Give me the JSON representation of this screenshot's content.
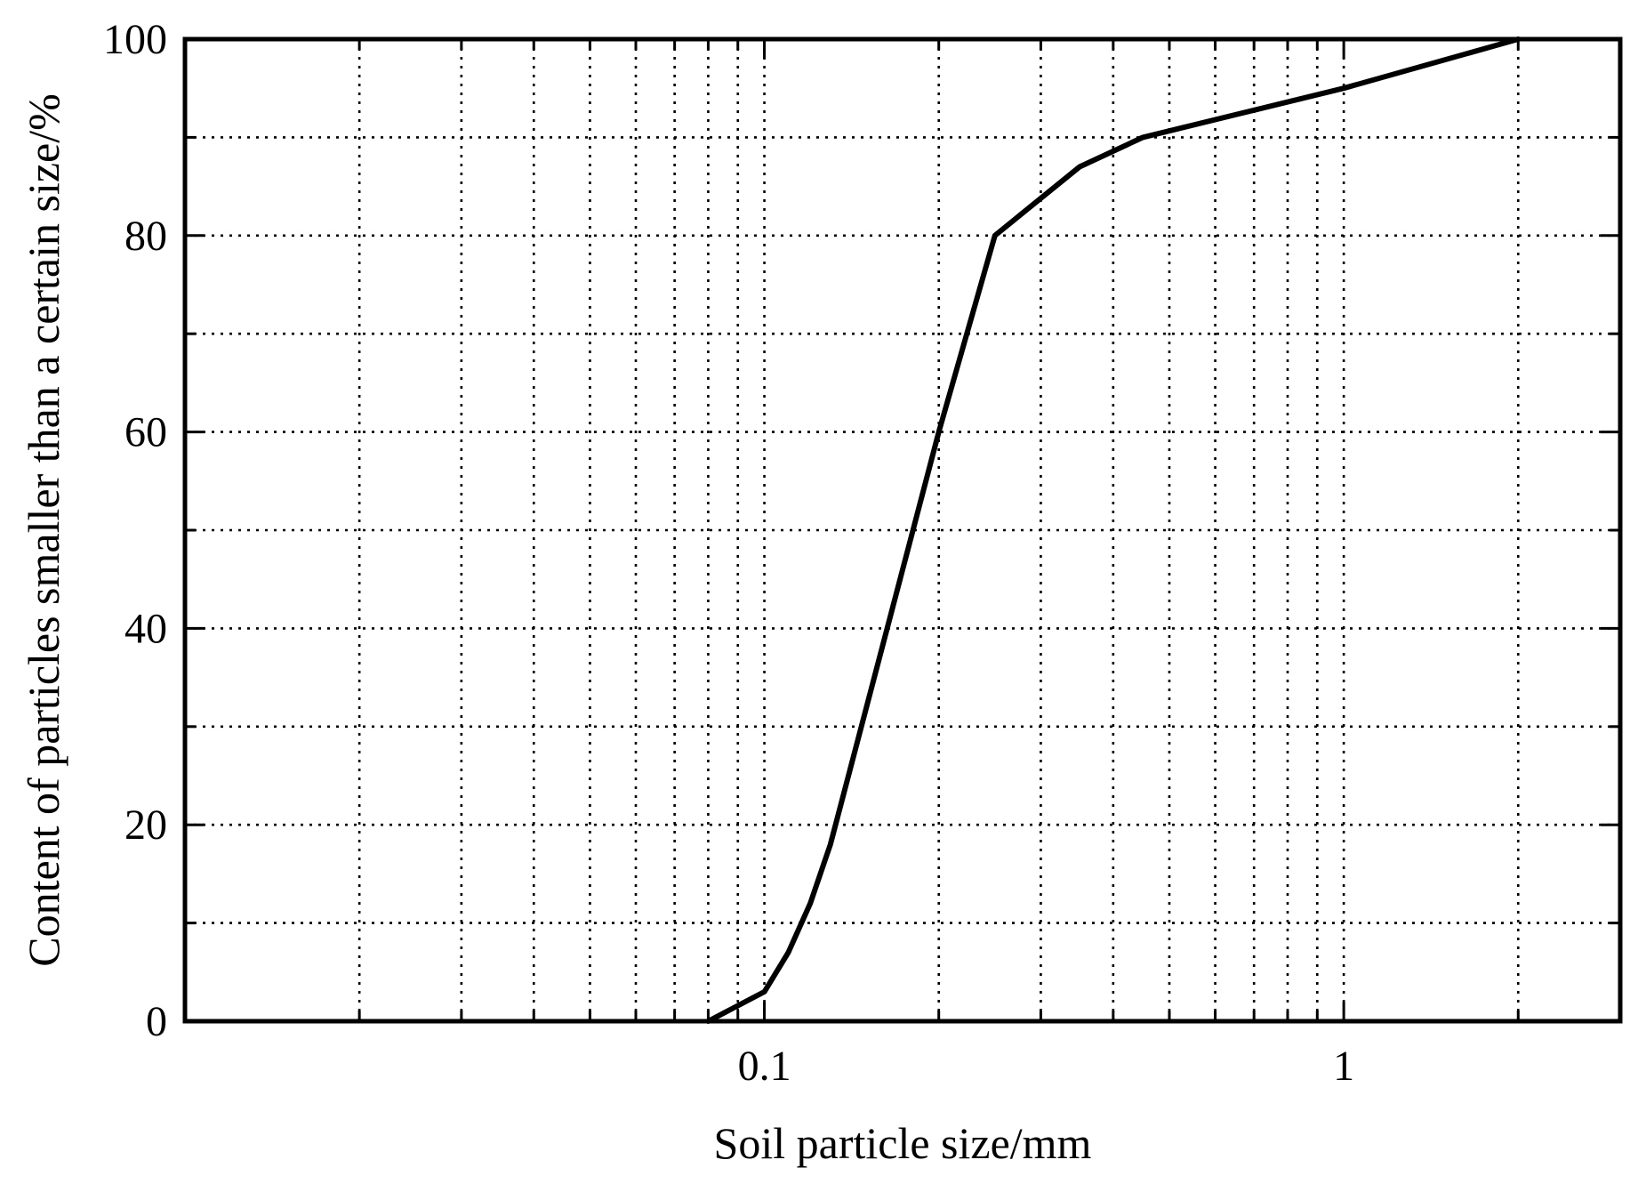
{
  "chart_data": {
    "type": "line",
    "title": "",
    "xlabel": "Soil particle size/mm",
    "ylabel": "Content of particles smaller than a certain size/%",
    "x_scale": "log",
    "xlim": [
      0.01,
      3
    ],
    "ylim": [
      0,
      100
    ],
    "x_ticks": [
      0.1,
      1
    ],
    "x_tick_labels": [
      "0.1",
      "1"
    ],
    "y_ticks": [
      0,
      20,
      40,
      60,
      80,
      100
    ],
    "y_tick_labels": [
      "0",
      "20",
      "40",
      "60",
      "80",
      "100"
    ],
    "grid": true,
    "legend": "none",
    "series": [
      {
        "x": [
          0.08,
          0.1,
          0.11,
          0.12,
          0.13,
          0.2,
          0.25,
          0.35,
          0.45,
          1.0,
          2.0
        ],
        "y": [
          0,
          3,
          7,
          12,
          18,
          60,
          80,
          87,
          90,
          95,
          100
        ]
      }
    ]
  }
}
